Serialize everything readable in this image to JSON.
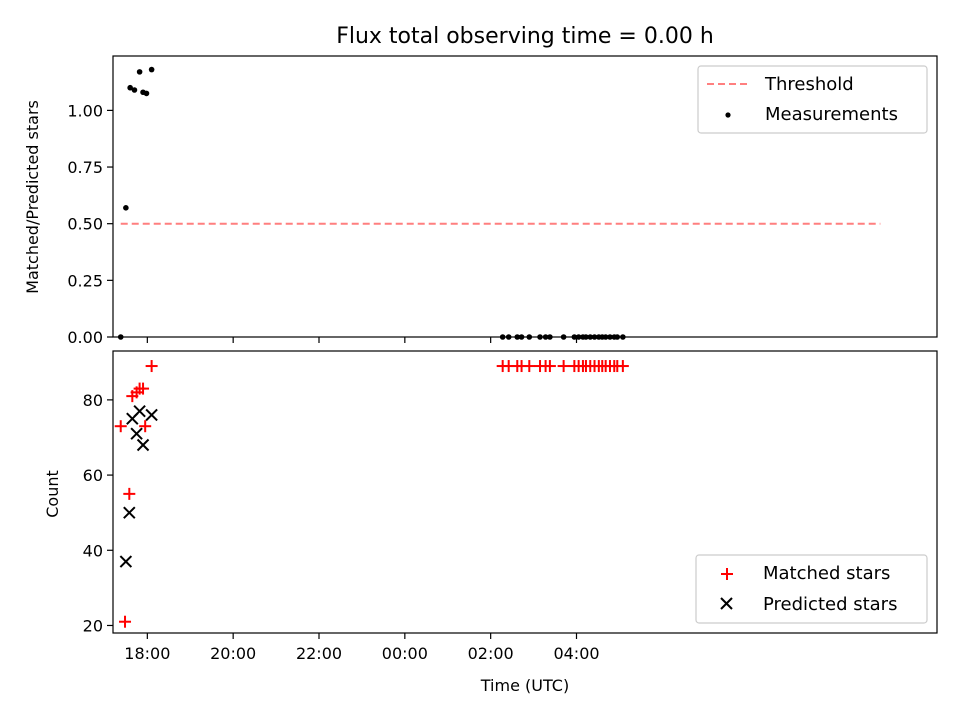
{
  "chart_data": [
    {
      "type": "scatter",
      "title": "Flux total observing time = 0.00 h",
      "xlabel": "",
      "ylabel": "Matched/Predicted stars",
      "xlim": [
        -6.8,
        12.4
      ],
      "ylim": [
        0,
        1.24
      ],
      "yticks": [
        0.0,
        0.25,
        0.5,
        0.75,
        1.0
      ],
      "ytick_labels": [
        "0.00",
        "0.25",
        "0.50",
        "0.75",
        "1.00"
      ],
      "grid": false,
      "legend_position": "top-right",
      "legend": [
        "Threshold",
        "Measurements"
      ],
      "threshold": {
        "name": "Threshold",
        "y": 0.5,
        "x_start": -6.62,
        "x_end": 11.08,
        "color": "#ff7f7f",
        "style": "dashed"
      },
      "series": [
        {
          "name": "Measurements",
          "marker": "dot",
          "color": "#000000",
          "points": [
            [
              -6.62,
              0.0
            ],
            [
              -6.5,
              0.57
            ],
            [
              -6.4,
              1.1
            ],
            [
              -6.3,
              1.09
            ],
            [
              -6.18,
              1.17
            ],
            [
              -6.1,
              1.08
            ],
            [
              -6.02,
              1.075
            ],
            [
              -5.9,
              1.18
            ],
            [
              2.28,
              0.0
            ],
            [
              2.42,
              0.0
            ],
            [
              2.62,
              0.0
            ],
            [
              2.72,
              0.0
            ],
            [
              2.9,
              0.0
            ],
            [
              3.15,
              0.0
            ],
            [
              3.28,
              0.0
            ],
            [
              3.38,
              0.0
            ],
            [
              3.7,
              0.0
            ],
            [
              3.95,
              0.0
            ],
            [
              4.05,
              0.0
            ],
            [
              4.15,
              0.0
            ],
            [
              4.22,
              0.0
            ],
            [
              4.32,
              0.0
            ],
            [
              4.42,
              0.0
            ],
            [
              4.52,
              0.0
            ],
            [
              4.6,
              0.0
            ],
            [
              4.68,
              0.0
            ],
            [
              4.78,
              0.0
            ],
            [
              4.88,
              0.0
            ],
            [
              4.95,
              0.0
            ],
            [
              5.08,
              0.0
            ]
          ]
        }
      ]
    },
    {
      "type": "scatter",
      "title": "",
      "xlabel": "Time (UTC)",
      "ylabel": "Count",
      "xlim": [
        -6.8,
        12.4
      ],
      "ylim": [
        18,
        93
      ],
      "yticks": [
        20,
        40,
        60,
        80
      ],
      "ytick_labels": [
        "20",
        "40",
        "60",
        "80"
      ],
      "xticks": [
        -6,
        -4,
        -2,
        0,
        2,
        4
      ],
      "xtick_labels": [
        "18:00",
        "20:00",
        "22:00",
        "00:00",
        "02:00",
        "04:00"
      ],
      "grid": false,
      "legend_position": "bottom-right",
      "legend": [
        "Matched stars",
        "Predicted stars"
      ],
      "series": [
        {
          "name": "Matched stars",
          "marker": "plus",
          "color": "#ff0000",
          "points": [
            [
              -6.62,
              73
            ],
            [
              -6.52,
              21
            ],
            [
              -6.42,
              55
            ],
            [
              -6.35,
              81
            ],
            [
              -6.25,
              82
            ],
            [
              -6.18,
              83
            ],
            [
              -6.1,
              83
            ],
            [
              -6.05,
              73
            ],
            [
              -5.9,
              89
            ],
            [
              2.28,
              89
            ],
            [
              2.42,
              89
            ],
            [
              2.62,
              89
            ],
            [
              2.72,
              89
            ],
            [
              2.9,
              89
            ],
            [
              3.15,
              89
            ],
            [
              3.28,
              89
            ],
            [
              3.38,
              89
            ],
            [
              3.7,
              89
            ],
            [
              3.95,
              89
            ],
            [
              4.05,
              89
            ],
            [
              4.15,
              89
            ],
            [
              4.22,
              89
            ],
            [
              4.32,
              89
            ],
            [
              4.42,
              89
            ],
            [
              4.52,
              89
            ],
            [
              4.6,
              89
            ],
            [
              4.68,
              89
            ],
            [
              4.78,
              89
            ],
            [
              4.88,
              89
            ],
            [
              4.95,
              89
            ],
            [
              5.08,
              89
            ]
          ]
        },
        {
          "name": "Predicted stars",
          "marker": "x",
          "color": "#000000",
          "points": [
            [
              -6.5,
              37
            ],
            [
              -6.42,
              50
            ],
            [
              -6.35,
              75
            ],
            [
              -6.25,
              71
            ],
            [
              -6.18,
              77
            ],
            [
              -6.1,
              68
            ],
            [
              -5.9,
              76
            ]
          ]
        }
      ]
    }
  ]
}
